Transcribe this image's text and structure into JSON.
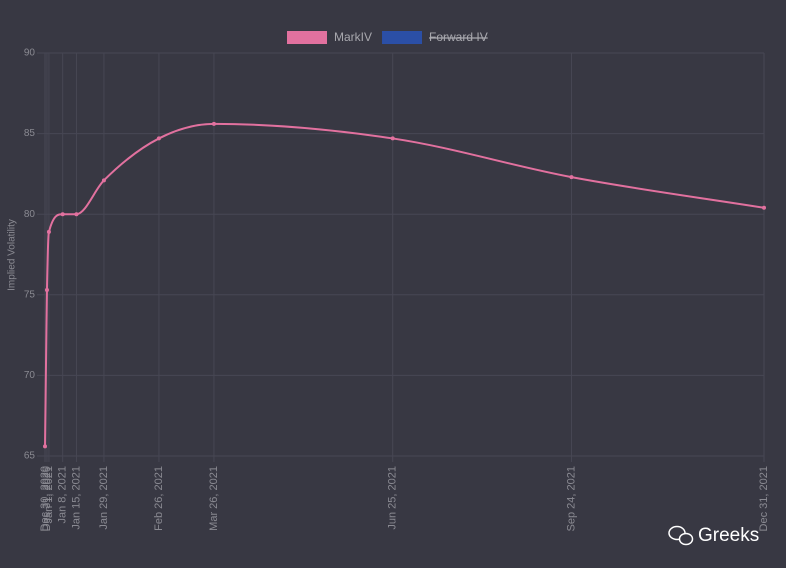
{
  "chart_data": {
    "type": "line",
    "y_label": "Implied Volatility",
    "x": [
      "Dec 30, 2020",
      "Dec 31, 2020",
      "Jan 1, 2021",
      "Jan 8, 2021",
      "Jan 15, 2021",
      "Jan 29, 2021",
      "Feb 26, 2021",
      "Mar 26, 2021",
      "Jun 25, 2021",
      "Sep 24, 2021",
      "Dec 31, 2021"
    ],
    "series": [
      {
        "name": "MarkIV",
        "color": "#e2719f",
        "values": [
          65.6,
          75.3,
          78.9,
          80.0,
          80.0,
          82.1,
          84.7,
          85.6,
          84.7,
          82.3,
          80.4
        ]
      }
    ],
    "hidden_series": [
      {
        "name": "Forward IV",
        "color": "#2b4fa6"
      }
    ],
    "ylim": [
      65,
      90
    ],
    "yticks": [
      65,
      70,
      75,
      80,
      85,
      90
    ],
    "grid": true,
    "legend": "top",
    "watermark": "Greeks"
  }
}
